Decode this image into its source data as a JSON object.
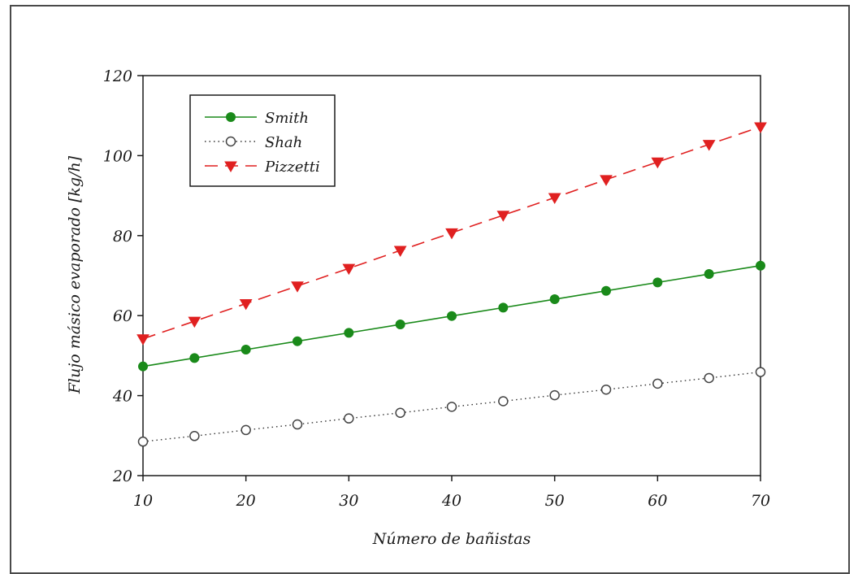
{
  "chart_data": {
    "type": "line",
    "title": "",
    "xlabel": "Número de bañistas",
    "ylabel": "Flujo másico evaporado [kg/h]",
    "xlim": [
      10,
      70
    ],
    "ylim": [
      20,
      120
    ],
    "xticks": [
      10,
      20,
      30,
      40,
      50,
      60,
      70
    ],
    "yticks": [
      20,
      40,
      60,
      80,
      100,
      120
    ],
    "x": [
      10,
      15,
      20,
      25,
      30,
      35,
      40,
      45,
      50,
      55,
      60,
      65,
      70
    ],
    "grid": false,
    "legend_position": "top-left",
    "series": [
      {
        "name": "Smith",
        "color": "#1a8a1a",
        "line_style": "solid",
        "marker": "filled-circle",
        "values": [
          47.3,
          49.4,
          51.5,
          53.6,
          55.7,
          57.8,
          59.9,
          62.0,
          64.1,
          66.2,
          68.3,
          70.4,
          72.5
        ]
      },
      {
        "name": "Shah",
        "color": "#333333",
        "line_style": "dotted",
        "marker": "open-circle",
        "values": [
          28.5,
          29.9,
          31.4,
          32.8,
          34.3,
          35.7,
          37.2,
          38.6,
          40.1,
          41.5,
          43.0,
          44.4,
          45.9
        ]
      },
      {
        "name": "Pizzetti",
        "color": "#e02020",
        "line_style": "dashed",
        "marker": "filled-triangle-down",
        "values": [
          54.2,
          58.6,
          63.0,
          67.4,
          71.8,
          76.3,
          80.7,
          85.1,
          89.5,
          94.0,
          98.4,
          102.8,
          107.2
        ]
      }
    ]
  }
}
